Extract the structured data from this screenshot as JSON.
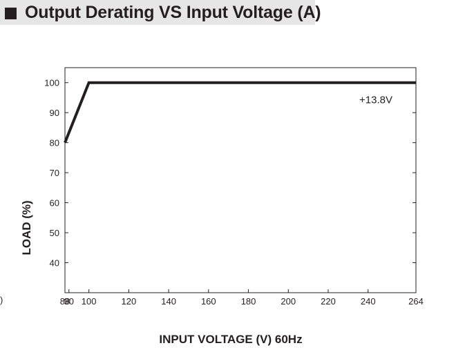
{
  "header": {
    "title": "Output Derating VS Input Voltage (A)"
  },
  "stray_glyph": ")",
  "chart_data": {
    "type": "line",
    "xlabel": "INPUT VOLTAGE (V) 60Hz",
    "ylabel": "LOAD (%)",
    "xlim": [
      88,
      264
    ],
    "ylim": [
      30,
      105
    ],
    "x_ticks": [
      88,
      90,
      100,
      120,
      140,
      160,
      180,
      200,
      220,
      240,
      264
    ],
    "y_ticks": [
      40,
      50,
      60,
      70,
      80,
      90,
      100
    ],
    "grid": false,
    "series": [
      {
        "name": "+13.8V",
        "x": [
          88,
          100,
          264
        ],
        "y": [
          80,
          100,
          100
        ]
      }
    ],
    "colors": {
      "line": "#231f20",
      "axis": "#231f20"
    }
  }
}
